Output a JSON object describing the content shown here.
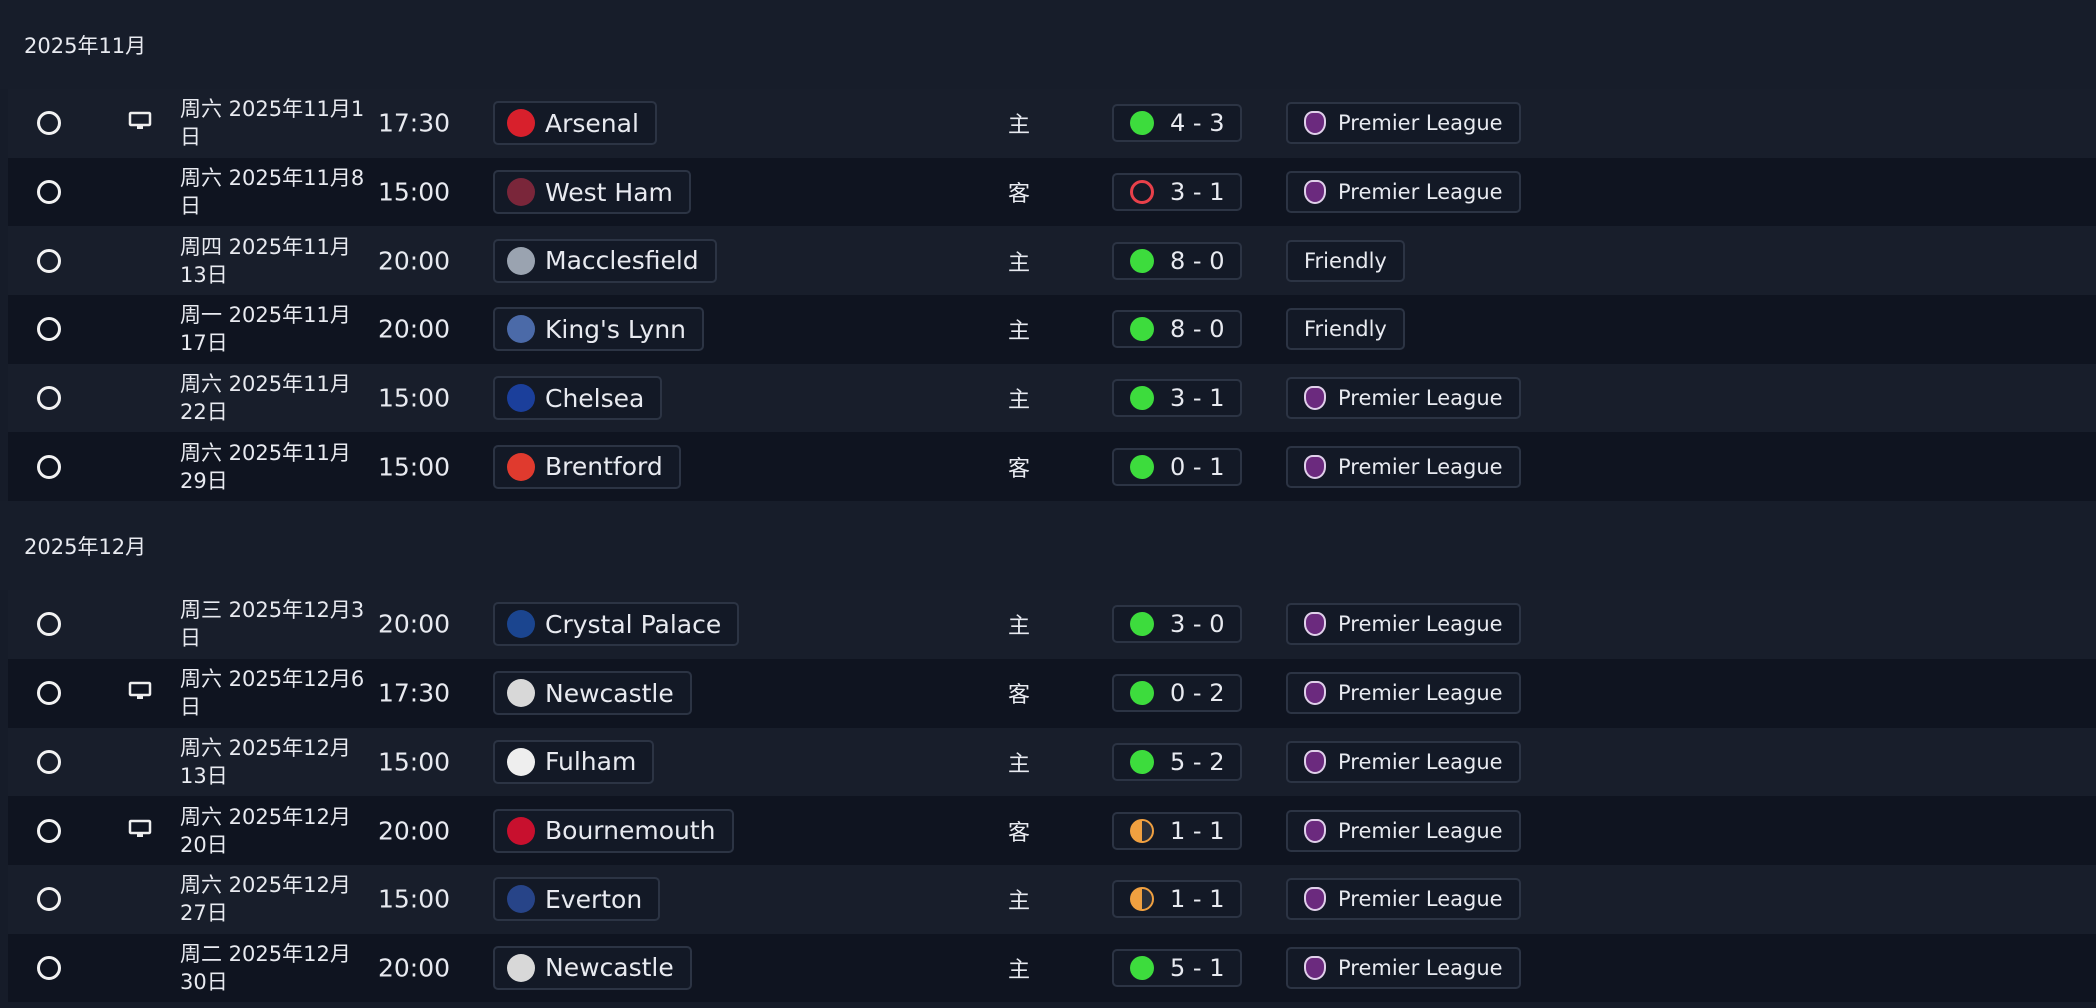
{
  "months": [
    {
      "label": "2025年11月",
      "matches": [
        {
          "date": "周六 2025年11月1日",
          "time": "17:30",
          "opponent": "Arsenal",
          "venue": "主",
          "score": "4 - 3",
          "result": "win",
          "competition": "Premier League",
          "tv": true
        },
        {
          "date": "周六 2025年11月8日",
          "time": "15:00",
          "opponent": "West Ham",
          "venue": "客",
          "score": "3 - 1",
          "result": "loss",
          "competition": "Premier League",
          "tv": false
        },
        {
          "date": "周四 2025年11月13日",
          "time": "20:00",
          "opponent": "Macclesfield",
          "venue": "主",
          "score": "8 - 0",
          "result": "win",
          "competition": "Friendly",
          "tv": false
        },
        {
          "date": "周一 2025年11月17日",
          "time": "20:00",
          "opponent": "King's Lynn",
          "venue": "主",
          "score": "8 - 0",
          "result": "win",
          "competition": "Friendly",
          "tv": false
        },
        {
          "date": "周六 2025年11月22日",
          "time": "15:00",
          "opponent": "Chelsea",
          "venue": "主",
          "score": "3 - 1",
          "result": "win",
          "competition": "Premier League",
          "tv": false
        },
        {
          "date": "周六 2025年11月29日",
          "time": "15:00",
          "opponent": "Brentford",
          "venue": "客",
          "score": "0 - 1",
          "result": "win",
          "competition": "Premier League",
          "tv": false
        }
      ]
    },
    {
      "label": "2025年12月",
      "matches": [
        {
          "date": "周三 2025年12月3日",
          "time": "20:00",
          "opponent": "Crystal Palace",
          "venue": "主",
          "score": "3 - 0",
          "result": "win",
          "competition": "Premier League",
          "tv": false
        },
        {
          "date": "周六 2025年12月6日",
          "time": "17:30",
          "opponent": "Newcastle",
          "venue": "客",
          "score": "0 - 2",
          "result": "win",
          "competition": "Premier League",
          "tv": true
        },
        {
          "date": "周六 2025年12月13日",
          "time": "15:00",
          "opponent": "Fulham",
          "venue": "主",
          "score": "5 - 2",
          "result": "win",
          "competition": "Premier League",
          "tv": false
        },
        {
          "date": "周六 2025年12月20日",
          "time": "20:00",
          "opponent": "Bournemouth",
          "venue": "客",
          "score": "1 - 1",
          "result": "draw",
          "competition": "Premier League",
          "tv": true
        },
        {
          "date": "周六 2025年12月27日",
          "time": "15:00",
          "opponent": "Everton",
          "venue": "主",
          "score": "1 - 1",
          "result": "draw",
          "competition": "Premier League",
          "tv": false
        },
        {
          "date": "周二 2025年12月30日",
          "time": "20:00",
          "opponent": "Newcastle",
          "venue": "主",
          "score": "5 - 1",
          "result": "win",
          "competition": "Premier League",
          "tv": false
        }
      ]
    }
  ]
}
